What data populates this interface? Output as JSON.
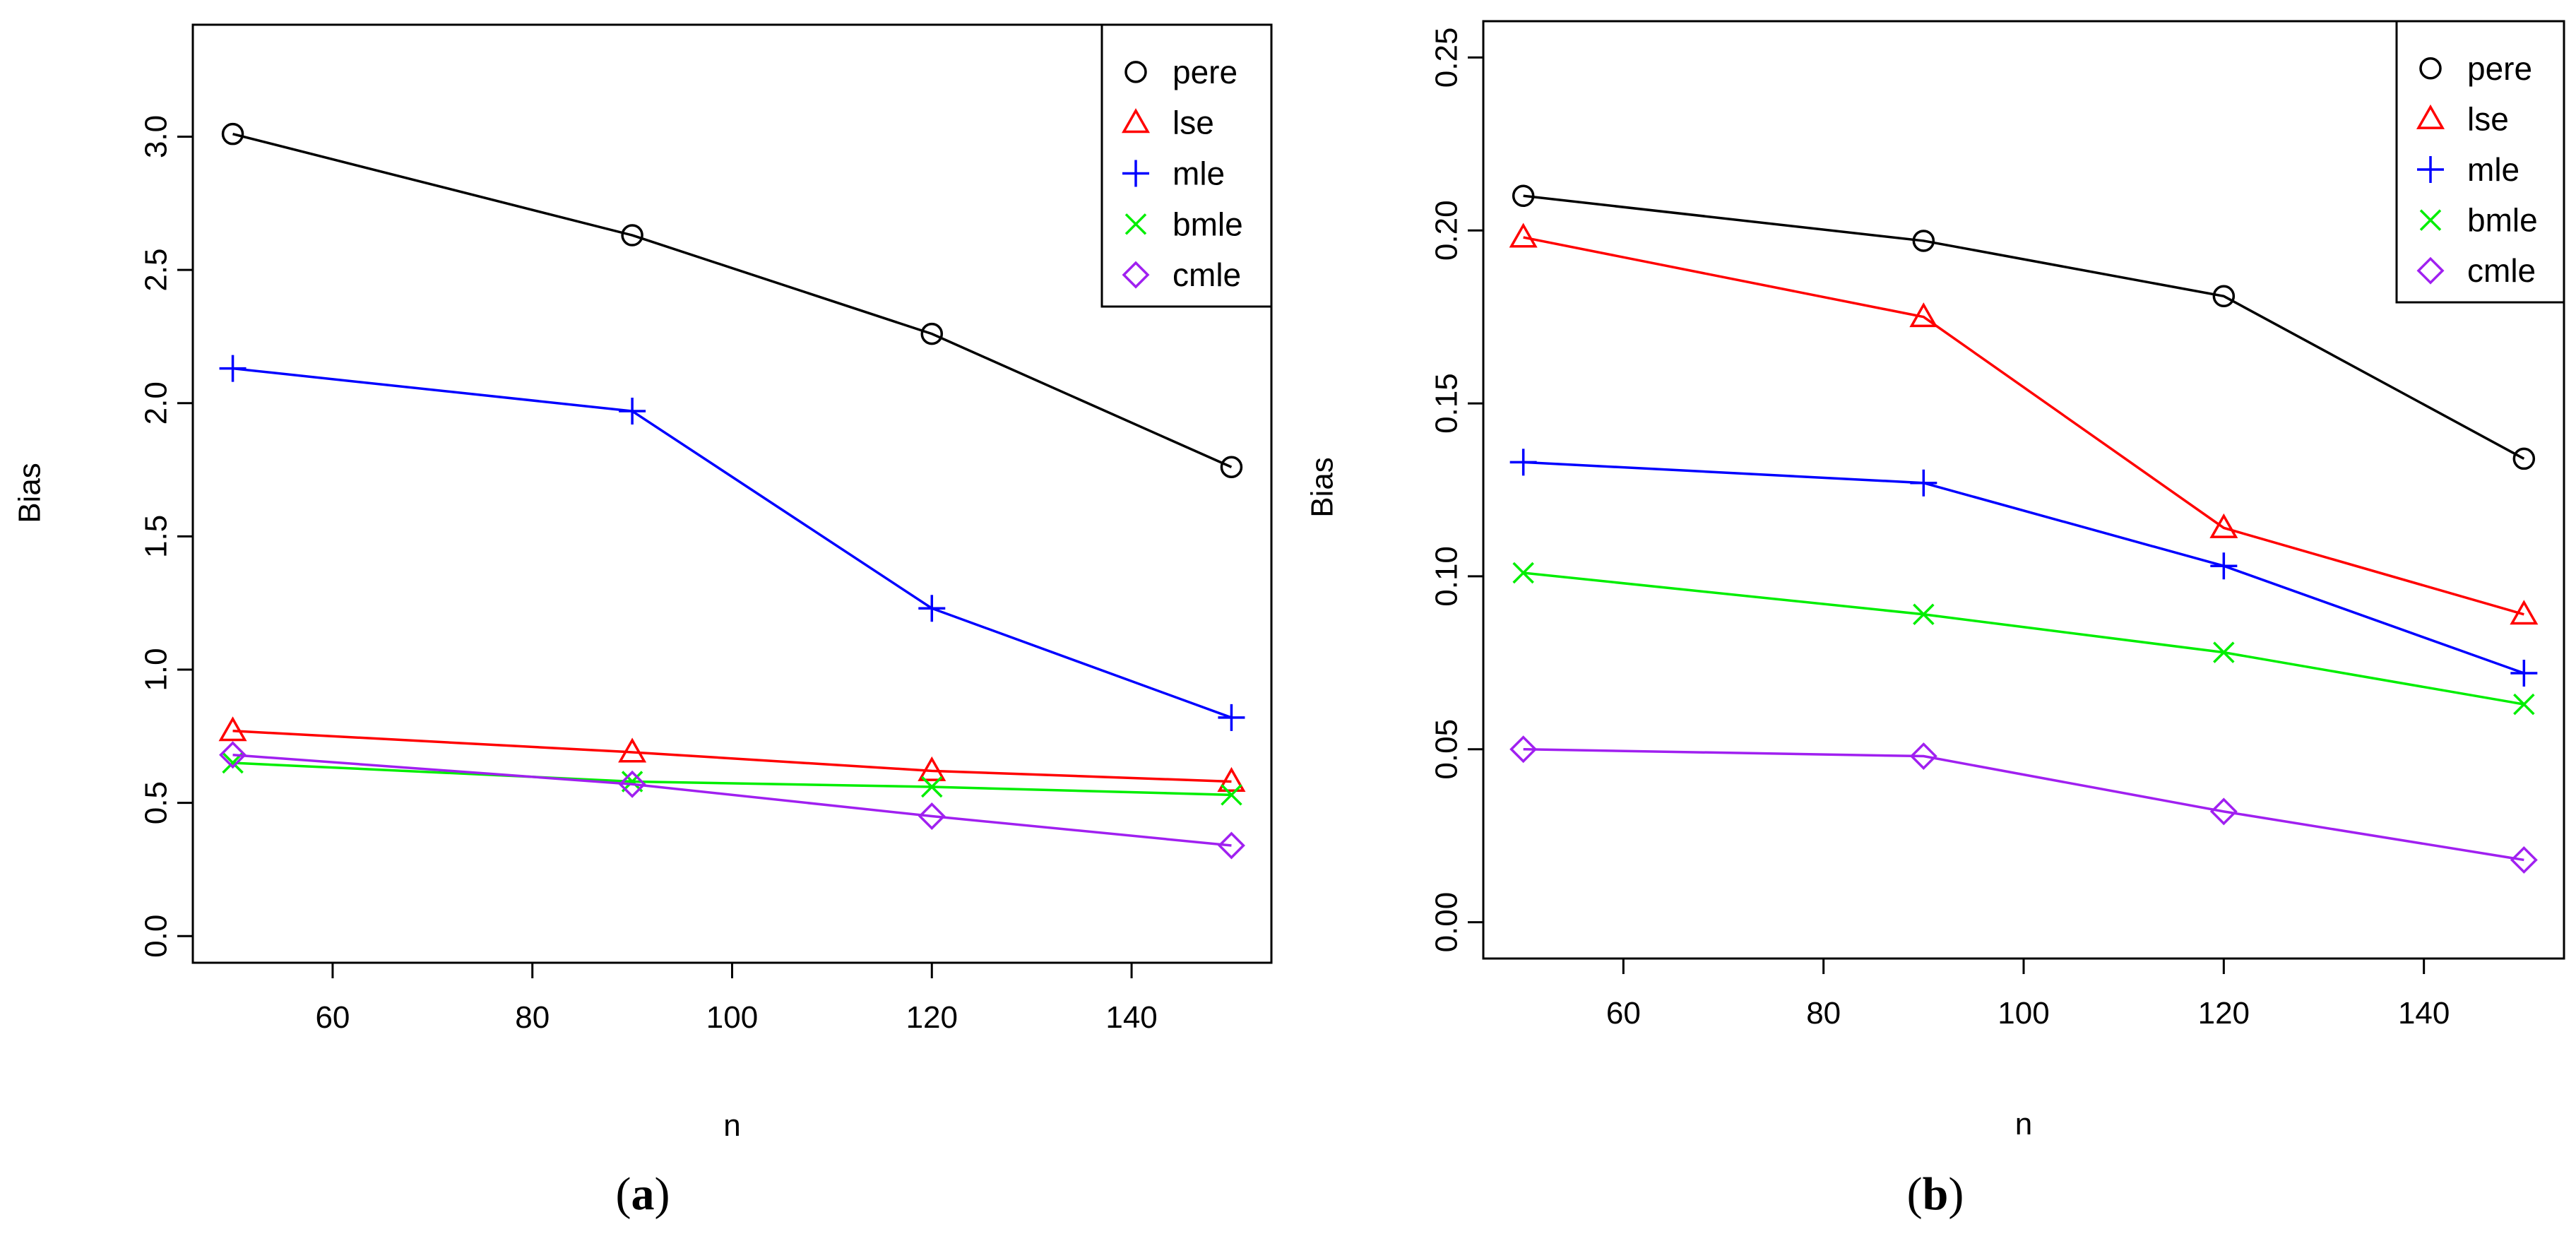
{
  "chart_data": [
    {
      "type": "line",
      "caption_letter": "a",
      "xlabel": "n",
      "ylabel": "Bias",
      "x": [
        50,
        90,
        120,
        150
      ],
      "xlim": [
        46,
        154
      ],
      "ylim": [
        -0.1,
        3.42
      ],
      "xticks": [
        60,
        80,
        100,
        120,
        140
      ],
      "yticks": [
        0.0,
        0.5,
        1.0,
        1.5,
        2.0,
        2.5,
        3.0
      ],
      "ytick_labels": [
        "0.0",
        "0.5",
        "1.0",
        "1.5",
        "2.0",
        "2.5",
        "3.0"
      ],
      "grid": false,
      "legend_position": "top-right",
      "series": [
        {
          "name": "pere",
          "marker": "circle",
          "color": "#000000",
          "values": [
            3.01,
            2.63,
            2.26,
            1.76
          ]
        },
        {
          "name": "lse",
          "marker": "triangle",
          "color": "#ff0000",
          "values": [
            0.77,
            0.69,
            0.62,
            0.58
          ]
        },
        {
          "name": "mle",
          "marker": "plus",
          "color": "#0000ff",
          "values": [
            2.13,
            1.97,
            1.23,
            0.82
          ]
        },
        {
          "name": "bmle",
          "marker": "cross",
          "color": "#00ee00",
          "values": [
            0.65,
            0.58,
            0.56,
            0.53
          ]
        },
        {
          "name": "cmle",
          "marker": "diamond",
          "color": "#a020f0",
          "values": [
            0.68,
            0.57,
            0.45,
            0.34
          ]
        }
      ]
    },
    {
      "type": "line",
      "caption_letter": "b",
      "xlabel": "n",
      "ylabel": "Bias",
      "x": [
        50,
        90,
        120,
        150
      ],
      "xlim": [
        46,
        154
      ],
      "ylim": [
        -0.0105,
        0.2605
      ],
      "xticks": [
        60,
        80,
        100,
        120,
        140
      ],
      "yticks": [
        0.0,
        0.05,
        0.1,
        0.15,
        0.2,
        0.25
      ],
      "ytick_labels": [
        "0.00",
        "0.05",
        "0.10",
        "0.15",
        "0.20",
        "0.25"
      ],
      "grid": false,
      "legend_position": "top-right",
      "series": [
        {
          "name": "pere",
          "marker": "circle",
          "color": "#000000",
          "values": [
            0.21,
            0.197,
            0.181,
            0.134
          ]
        },
        {
          "name": "lse",
          "marker": "triangle",
          "color": "#ff0000",
          "values": [
            0.198,
            0.175,
            0.114,
            0.089
          ]
        },
        {
          "name": "mle",
          "marker": "plus",
          "color": "#0000ff",
          "values": [
            0.133,
            0.127,
            0.103,
            0.072
          ]
        },
        {
          "name": "bmle",
          "marker": "cross",
          "color": "#00ee00",
          "values": [
            0.101,
            0.089,
            0.078,
            0.063
          ]
        },
        {
          "name": "cmle",
          "marker": "diamond",
          "color": "#a020f0",
          "values": [
            0.05,
            0.048,
            0.032,
            0.018
          ]
        }
      ]
    }
  ]
}
